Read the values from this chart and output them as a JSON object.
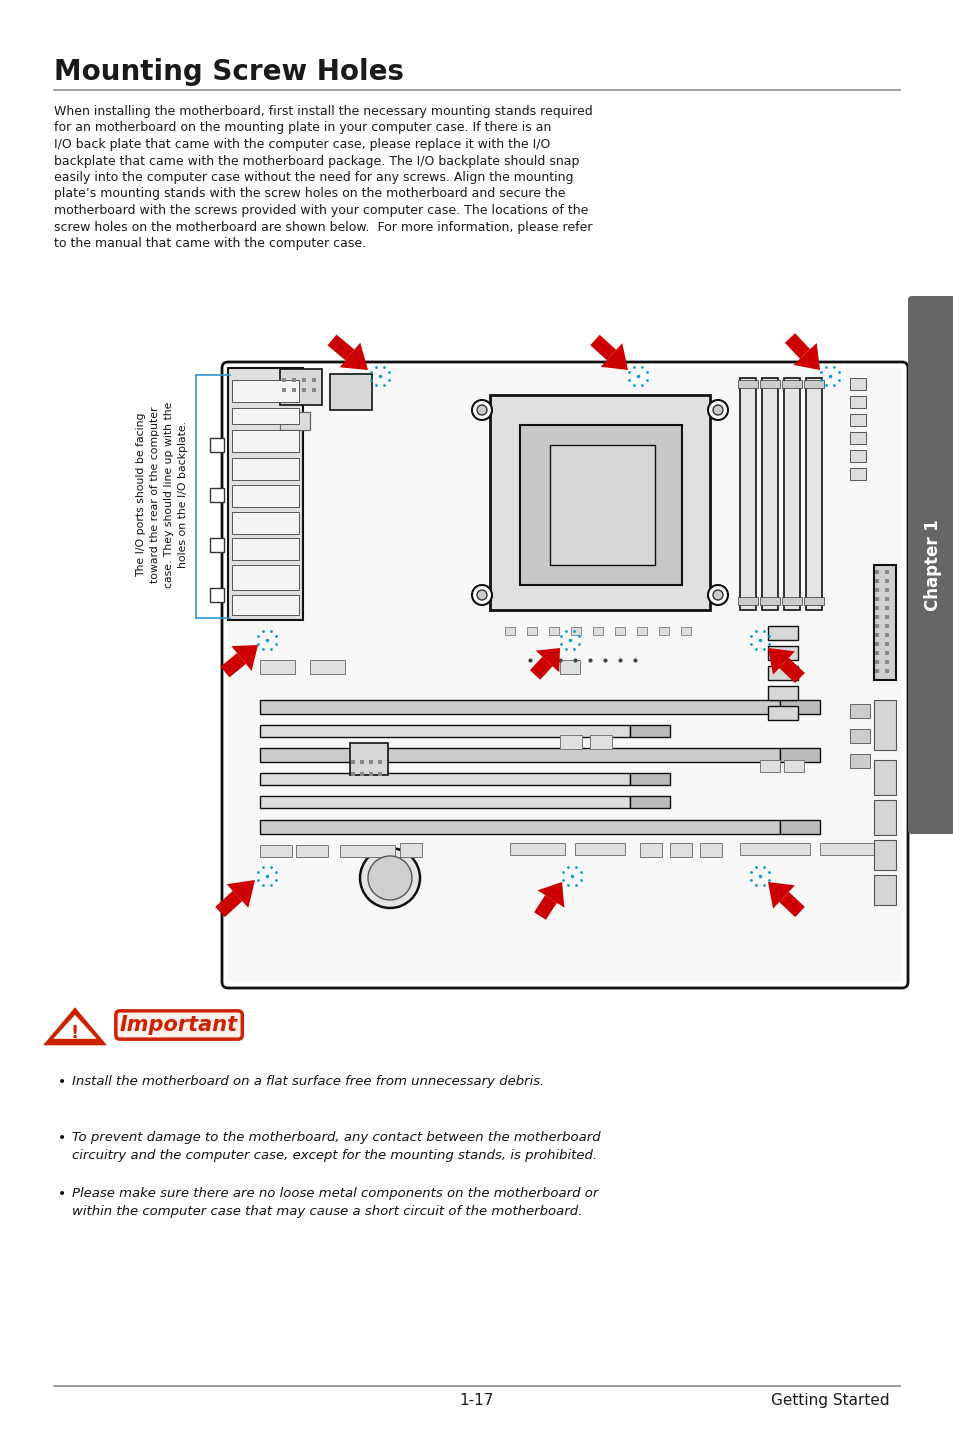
{
  "title": "Mounting Screw Holes",
  "body_text_lines": [
    "When installing the motherboard, first install the necessary mounting stands required",
    "for an motherboard on the mounting plate in your computer case. If there is an",
    "I/O back plate that came with the computer case, please replace it with the I/O",
    "backplate that came with the motherboard package. The I/O backplate should snap",
    "easily into the computer case without the need for any screws. Align the mounting",
    "plate’s mounting stands with the screw holes on the motherboard and secure the",
    "motherboard with the screws provided with your computer case. The locations of the",
    "screw holes on the motherboard are shown below.  For more information, please refer",
    "to the manual that came with the computer case."
  ],
  "sidebar_text": "The I/O ports should be facing\ntoward the rear of the computer\ncase. They should line up with the\nholes on the I/O backplate.",
  "chapter_label": "Chapter 1",
  "important_bullets": [
    "Install the motherboard on a flat surface free from unnecessary debris.",
    "To prevent damage to the motherboard, any contact between the motherboard\ncircuitry and the computer case, except for the mounting stands, is prohibited.",
    "Please make sure there are no loose metal components on the motherboard or\nwithin the computer case that may cause a short circuit of the motherboard."
  ],
  "footer_left": "1-17",
  "footer_right": "Getting Started",
  "bg_color": "#ffffff",
  "text_color": "#1a1a1a",
  "title_color": "#1a1a1a",
  "arrow_color": "#cc0000",
  "screw_color": "#1199cc",
  "chapter_bg": "#666666",
  "board_edge": "#111111"
}
